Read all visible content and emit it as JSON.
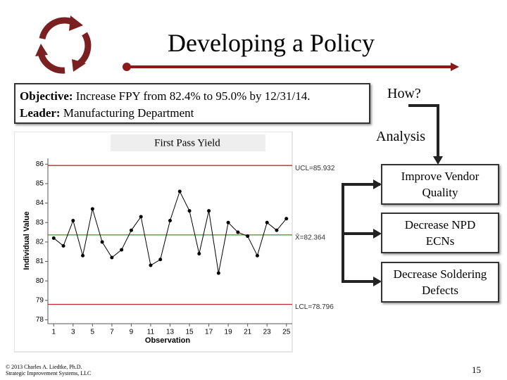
{
  "slide": {
    "title": "Developing a Policy",
    "objective": {
      "label": "Objective:",
      "text": "Increase FPY from 82.4% to 95.0% by 12/31/14."
    },
    "leader": {
      "label": "Leader:",
      "text": "Manufacturing Department"
    },
    "question": "How?",
    "analysis": "Analysis",
    "actions": [
      "Improve Vendor Quality",
      "Decrease NPD  ECNs",
      "Decrease Soldering Defects"
    ],
    "footer": [
      "© 2013  Charles A. Liedtke, Ph.D.",
      "Strategic Improvement Systems, LLC"
    ],
    "page_number": "15"
  },
  "chart_data": {
    "type": "line",
    "title": "First Pass Yield",
    "x_label": "Observation",
    "y_label": "Individual Value",
    "x": [
      1,
      2,
      3,
      4,
      5,
      6,
      7,
      8,
      9,
      10,
      11,
      12,
      13,
      14,
      15,
      16,
      17,
      18,
      19,
      20,
      21,
      22,
      23,
      24,
      25
    ],
    "values": [
      82.2,
      81.8,
      83.1,
      81.3,
      83.7,
      82.0,
      81.2,
      81.6,
      82.6,
      83.3,
      80.8,
      81.1,
      83.1,
      84.6,
      83.6,
      81.4,
      83.6,
      80.4,
      83.0,
      82.5,
      82.3,
      81.3,
      83.0,
      82.6,
      83.2
    ],
    "color": "#000000",
    "xlim": [
      0.4,
      25.6
    ],
    "xticks": [
      1,
      3,
      5,
      7,
      9,
      11,
      13,
      15,
      17,
      19,
      21,
      23,
      25
    ],
    "ylim": [
      77.8,
      86.3
    ],
    "yticks": [
      78,
      79,
      80,
      81,
      82,
      83,
      84,
      85,
      86
    ],
    "limits": [
      {
        "value": 85.932,
        "label": "UCL=85.932",
        "color": "#c0262b"
      },
      {
        "value": 82.364,
        "label": "X̄=82.364",
        "color": "#3aa63a"
      },
      {
        "value": 78.796,
        "label": "LCL=78.796",
        "color": "#c0262b"
      }
    ]
  }
}
